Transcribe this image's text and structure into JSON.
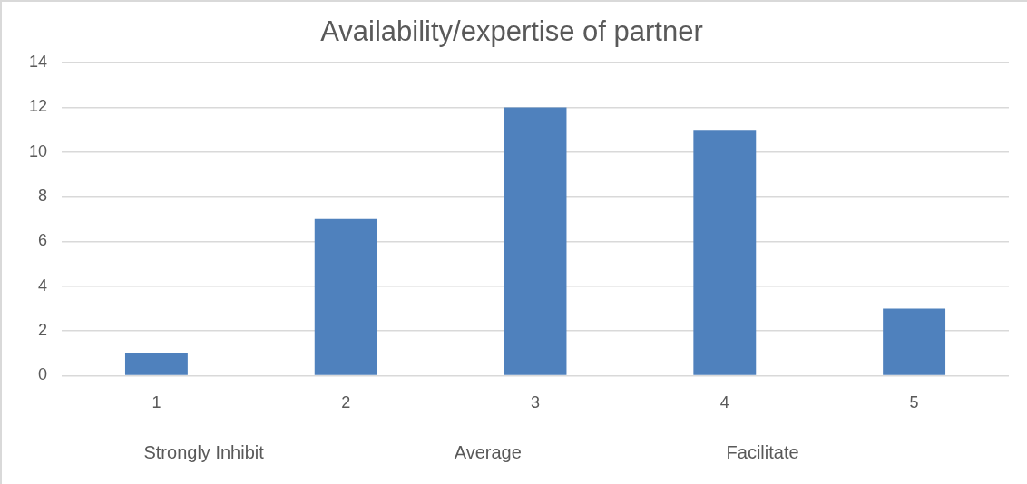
{
  "chart_data": {
    "type": "bar",
    "title": "Availability/expertise of partner",
    "categories": [
      "1",
      "2",
      "3",
      "4",
      "5"
    ],
    "values": [
      1,
      7,
      12,
      11,
      3
    ],
    "color": "#4f81bd",
    "ylim": [
      0,
      14
    ],
    "yticks": [
      0,
      2,
      4,
      6,
      8,
      10,
      12,
      14
    ],
    "grid": "y",
    "legend": false,
    "annotations": [
      "Strongly Inhibit",
      "Average",
      "Facilitate"
    ]
  }
}
